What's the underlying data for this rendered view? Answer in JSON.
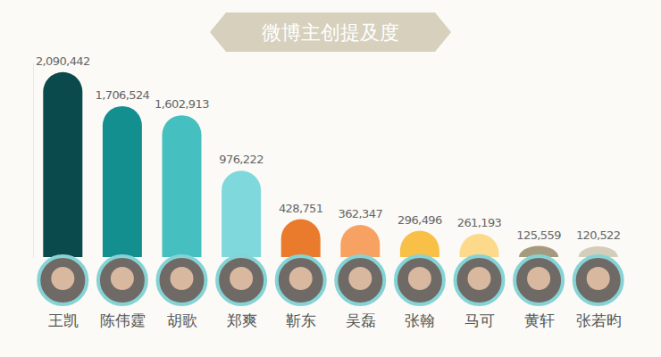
{
  "chart_data": {
    "type": "bar",
    "title": "微博主创提及度",
    "categories": [
      "王凯",
      "陈伟霆",
      "胡歌",
      "郑爽",
      "靳东",
      "吴磊",
      "张翰",
      "马可",
      "黄轩",
      "张若昀"
    ],
    "values": [
      2090442,
      1706524,
      1602913,
      976222,
      428751,
      362347,
      296496,
      261193,
      125559,
      120522
    ],
    "value_labels": [
      "2,090,442",
      "1,706,524",
      "1,602,913",
      "976,222",
      "428,751",
      "362,347",
      "296,496",
      "261,193",
      "125,559",
      "120,522"
    ],
    "colors": [
      "#0b4a4c",
      "#138f90",
      "#45bfbf",
      "#7fd8dc",
      "#ea7a2c",
      "#f7a262",
      "#f8c046",
      "#fdd98b",
      "#a69a7e",
      "#d4cdb9"
    ],
    "ylim": [
      0,
      2200000
    ],
    "data_labels": true,
    "tick_labels": "x"
  }
}
